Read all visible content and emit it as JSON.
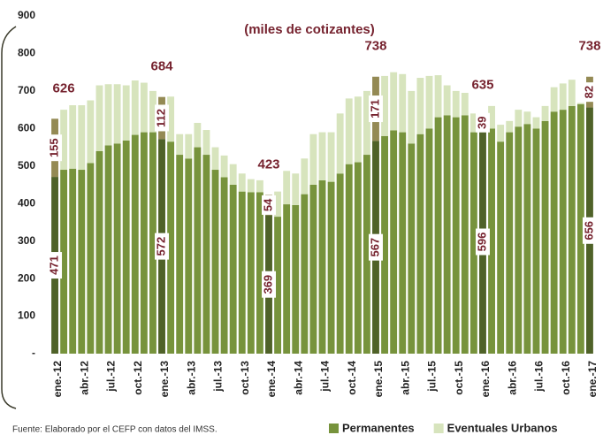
{
  "chart_data": {
    "type": "stacked_bar",
    "subtitle": "(miles de cotizantes)",
    "source": "Fuente: Elaborado por el CEFP con datos del IMSS.",
    "categories": [
      "ene.-12",
      null,
      null,
      "abr.-12",
      null,
      null,
      "jul.-12",
      null,
      null,
      "oct.-12",
      null,
      null,
      "ene.-13",
      null,
      null,
      "abr.-13",
      null,
      null,
      "jul.-13",
      null,
      null,
      "oct.-13",
      null,
      null,
      "ene.-14",
      null,
      null,
      "abr.-14",
      null,
      null,
      "jul.-14",
      null,
      null,
      "oct.-14",
      null,
      null,
      "ene.-15",
      null,
      null,
      "abr.-15",
      null,
      null,
      "jul.-15",
      null,
      null,
      "oct.-15",
      null,
      null,
      "ene.-16",
      null,
      null,
      "abr.-16",
      null,
      null,
      "jul.-16",
      null,
      null,
      "oct.-16",
      null,
      null,
      "ene.-17"
    ],
    "series": [
      {
        "name": "Permanentes",
        "color": "#77933c",
        "highlight_color": "#4f6228",
        "values": [
          471,
          490,
          493,
          490,
          508,
          540,
          555,
          560,
          568,
          583,
          590,
          590,
          572,
          565,
          530,
          520,
          550,
          530,
          490,
          470,
          450,
          432,
          430,
          430,
          369,
          365,
          398,
          396,
          425,
          450,
          462,
          458,
          480,
          505,
          510,
          530,
          567,
          580,
          595,
          590,
          560,
          585,
          600,
          630,
          635,
          630,
          635,
          590,
          596,
          600,
          565,
          590,
          605,
          612,
          600,
          620,
          645,
          650,
          660,
          665,
          656
        ],
        "value_labels": [
          "471",
          null,
          null,
          null,
          null,
          null,
          null,
          null,
          null,
          null,
          null,
          null,
          "572",
          null,
          null,
          null,
          null,
          null,
          null,
          null,
          null,
          null,
          null,
          null,
          "369",
          null,
          null,
          null,
          null,
          null,
          null,
          null,
          null,
          null,
          null,
          null,
          "567",
          null,
          null,
          null,
          null,
          null,
          null,
          null,
          null,
          null,
          null,
          null,
          "596",
          null,
          null,
          null,
          null,
          null,
          null,
          null,
          null,
          null,
          null,
          null,
          "656"
        ]
      },
      {
        "name": "Eventuales Urbanos",
        "color": "#d7e4bd",
        "highlight_color": "#948a54",
        "values": [
          155,
          160,
          169,
          172,
          167,
          175,
          163,
          158,
          147,
          145,
          132,
          110,
          112,
          120,
          55,
          65,
          65,
          66,
          60,
          58,
          55,
          48,
          35,
          32,
          54,
          67,
          89,
          84,
          95,
          135,
          128,
          132,
          160,
          175,
          175,
          170,
          171,
          160,
          155,
          155,
          140,
          150,
          140,
          112,
          80,
          70,
          60,
          50,
          39,
          60,
          45,
          30,
          45,
          33,
          30,
          40,
          65,
          70,
          70,
          3,
          82
        ],
        "value_labels": [
          "155",
          null,
          null,
          null,
          null,
          null,
          null,
          null,
          null,
          null,
          null,
          null,
          "112",
          null,
          null,
          null,
          null,
          null,
          null,
          null,
          null,
          null,
          null,
          null,
          "54",
          null,
          null,
          null,
          null,
          null,
          null,
          null,
          null,
          null,
          null,
          null,
          "171",
          null,
          null,
          null,
          null,
          null,
          null,
          null,
          null,
          null,
          null,
          null,
          "39",
          null,
          null,
          null,
          null,
          null,
          null,
          null,
          null,
          null,
          null,
          null,
          "82"
        ]
      }
    ],
    "total_labels": [
      "626",
      null,
      null,
      null,
      null,
      null,
      null,
      null,
      null,
      null,
      null,
      null,
      "684",
      null,
      null,
      null,
      null,
      null,
      null,
      null,
      null,
      null,
      null,
      null,
      "423",
      null,
      null,
      null,
      null,
      null,
      null,
      null,
      null,
      null,
      null,
      null,
      "738",
      null,
      null,
      null,
      null,
      null,
      null,
      null,
      null,
      null,
      null,
      null,
      "635",
      null,
      null,
      null,
      null,
      null,
      null,
      null,
      null,
      null,
      null,
      null,
      "738"
    ],
    "ylim": [
      0,
      900
    ],
    "yticks": [
      {
        "value": 0,
        "label": "-"
      },
      100,
      200,
      300,
      400,
      500,
      600,
      700,
      800,
      900
    ],
    "grid": false,
    "legend": "bottom-right",
    "label_color": "#76232f"
  }
}
